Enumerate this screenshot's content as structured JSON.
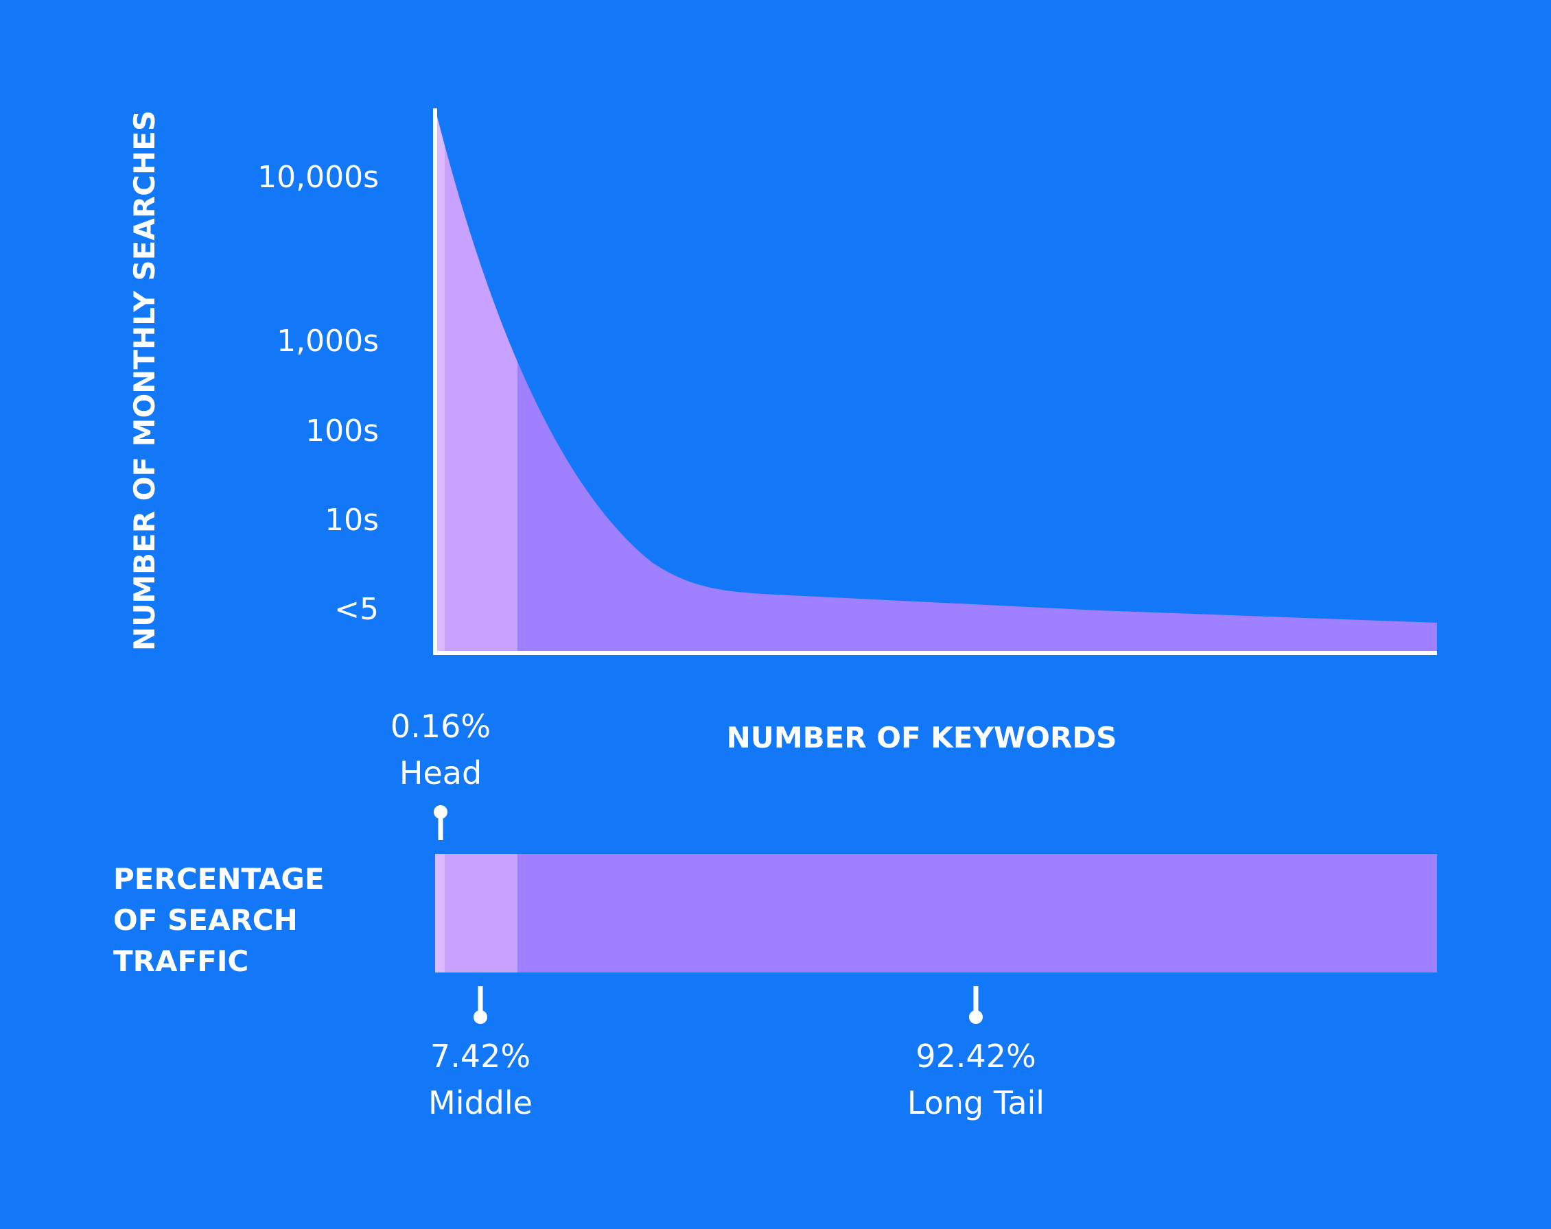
{
  "chart_data": {
    "type": "area",
    "xlabel": "NUMBER OF KEYWORDS",
    "ylabel": "NUMBER OF MONTHLY SEARCHES",
    "yticks": [
      "10,000s",
      "1,000s",
      "100s",
      "10s",
      "<5"
    ],
    "bar_title_lines": [
      "PERCENTAGE",
      "OF SEARCH",
      "TRAFFIC"
    ],
    "segments": [
      {
        "name": "Head",
        "percent_label": "0.16%",
        "percent": 0.16,
        "color": "#DDB9FF"
      },
      {
        "name": "Middle",
        "percent_label": "7.42%",
        "percent": 7.42,
        "color": "#C9A1FF"
      },
      {
        "name": "Long Tail",
        "percent_label": "92.42%",
        "percent": 92.42,
        "color": "#9F80FF"
      }
    ]
  },
  "colors": {
    "background": "#1278F7",
    "axis": "#FFFFFF",
    "head": "#DDB9FF",
    "middle": "#C9A1FF",
    "long_tail": "#9F80FF"
  }
}
